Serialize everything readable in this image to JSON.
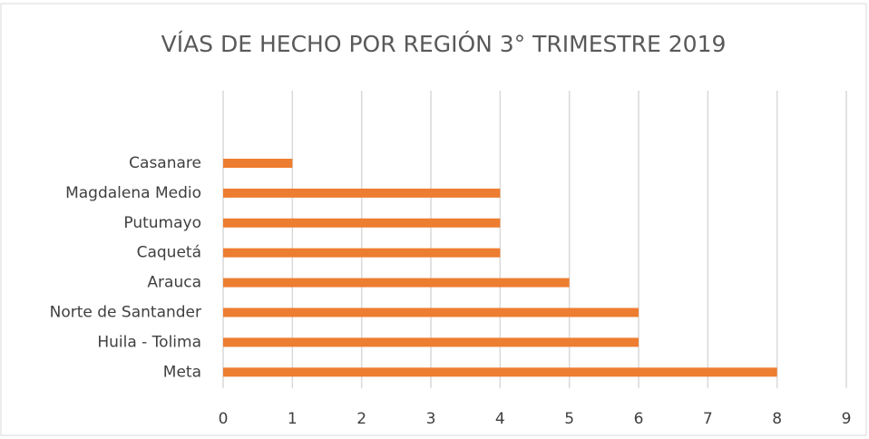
{
  "chart_data": {
    "type": "hbar",
    "title": "VÍAS DE HECHO POR REGIÓN 3° TRIMESTRE 2019",
    "categories": [
      "Casanare",
      "Magdalena Medio",
      "Putumayo",
      "Caquetá",
      "Arauca",
      "Norte de Santander",
      "Huila - Tolima",
      "Meta"
    ],
    "values": [
      1,
      4,
      4,
      4,
      5,
      6,
      6,
      8
    ],
    "color": "#ed7d31",
    "xlim": [
      0,
      9
    ],
    "xticks": [
      0,
      1,
      2,
      3,
      4,
      5,
      6,
      7,
      8,
      9
    ],
    "grid": true
  }
}
